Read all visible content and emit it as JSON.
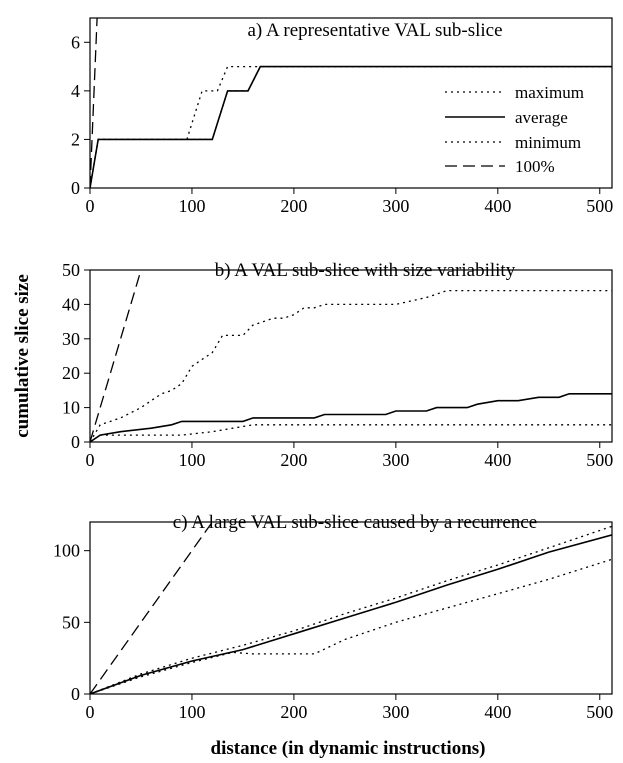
{
  "figure": {
    "ylabel": "cumulative slice size",
    "xlabel": "distance (in dynamic instructions)"
  },
  "chart_data": [
    {
      "type": "line",
      "title": "a) A representative VAL sub-slice",
      "xlim": [
        0,
        512
      ],
      "ylim": [
        0,
        7
      ],
      "xticks": [
        0,
        100,
        200,
        300,
        400,
        500
      ],
      "yticks": [
        0,
        2,
        4,
        6
      ],
      "legend": {
        "placement": "right",
        "entries": [
          {
            "label": "maximum",
            "style": "dotted"
          },
          {
            "label": "average",
            "style": "solid"
          },
          {
            "label": "minimum",
            "style": "dotted"
          },
          {
            "label": "100%",
            "style": "dashed"
          }
        ]
      },
      "series": [
        {
          "name": "maximum",
          "style": "dotted",
          "x": [
            0,
            8,
            95,
            110,
            125,
            135,
            512
          ],
          "y": [
            0,
            2,
            2,
            4,
            4,
            5,
            5
          ]
        },
        {
          "name": "average",
          "style": "solid",
          "x": [
            0,
            8,
            120,
            135,
            155,
            167,
            512
          ],
          "y": [
            0,
            2,
            2,
            4,
            4,
            5,
            5
          ]
        },
        {
          "name": "minimum",
          "style": "dotted",
          "x": [
            0,
            8,
            120,
            135,
            155,
            167,
            512
          ],
          "y": [
            0,
            2,
            2,
            4,
            4,
            5,
            5
          ]
        },
        {
          "name": "100%",
          "style": "dashed",
          "x": [
            0,
            7
          ],
          "y": [
            0,
            7
          ]
        }
      ]
    },
    {
      "type": "line",
      "title": "b) A VAL sub-slice with size variability",
      "xlim": [
        0,
        512
      ],
      "ylim": [
        0,
        50
      ],
      "xticks": [
        0,
        100,
        200,
        300,
        400,
        500
      ],
      "yticks": [
        0,
        10,
        20,
        30,
        40,
        50
      ],
      "series": [
        {
          "name": "maximum",
          "style": "dotted",
          "x": [
            0,
            10,
            30,
            50,
            60,
            70,
            80,
            90,
            100,
            110,
            120,
            130,
            140,
            150,
            160,
            170,
            180,
            190,
            200,
            210,
            220,
            230,
            240,
            300,
            330,
            340,
            350,
            512
          ],
          "y": [
            0,
            5,
            7,
            10,
            12,
            14,
            15,
            17,
            22,
            24,
            26,
            31,
            31,
            31,
            34,
            35,
            36,
            36,
            37,
            39,
            39,
            40,
            40,
            40,
            42,
            43,
            44,
            44
          ]
        },
        {
          "name": "average",
          "style": "solid",
          "x": [
            0,
            10,
            30,
            60,
            80,
            90,
            150,
            160,
            220,
            230,
            290,
            300,
            330,
            340,
            370,
            380,
            400,
            420,
            440,
            460,
            470,
            512
          ],
          "y": [
            0,
            2,
            3,
            4,
            5,
            6,
            6,
            7,
            7,
            8,
            8,
            9,
            9,
            10,
            10,
            11,
            12,
            12,
            13,
            13,
            14,
            14
          ]
        },
        {
          "name": "minimum",
          "style": "dotted",
          "x": [
            0,
            10,
            90,
            120,
            140,
            160,
            512
          ],
          "y": [
            0,
            2,
            2,
            3,
            4,
            5,
            5
          ]
        },
        {
          "name": "100%",
          "style": "dashed",
          "x": [
            0,
            50
          ],
          "y": [
            0,
            50
          ]
        }
      ]
    },
    {
      "type": "line",
      "title": "c) A large VAL sub-slice caused by a recurrence",
      "xlim": [
        0,
        512
      ],
      "ylim": [
        0,
        120
      ],
      "xticks": [
        0,
        100,
        200,
        300,
        400,
        500
      ],
      "yticks": [
        0,
        50,
        100
      ],
      "series": [
        {
          "name": "maximum",
          "style": "dotted",
          "x": [
            0,
            50,
            100,
            150,
            200,
            250,
            300,
            350,
            400,
            450,
            512
          ],
          "y": [
            0,
            14,
            25,
            34,
            44,
            56,
            67,
            79,
            90,
            102,
            117
          ]
        },
        {
          "name": "average",
          "style": "solid",
          "x": [
            0,
            50,
            100,
            150,
            200,
            250,
            300,
            350,
            400,
            450,
            512
          ],
          "y": [
            0,
            13,
            23,
            31,
            42,
            53,
            64,
            76,
            87,
            99,
            111
          ]
        },
        {
          "name": "minimum",
          "style": "dotted",
          "x": [
            0,
            50,
            100,
            140,
            160,
            220,
            250,
            300,
            350,
            400,
            450,
            512
          ],
          "y": [
            0,
            12,
            22,
            29,
            28,
            28,
            38,
            50,
            60,
            70,
            80,
            94
          ]
        },
        {
          "name": "100%",
          "style": "dashed",
          "x": [
            0,
            120
          ],
          "y": [
            0,
            120
          ]
        }
      ]
    }
  ]
}
